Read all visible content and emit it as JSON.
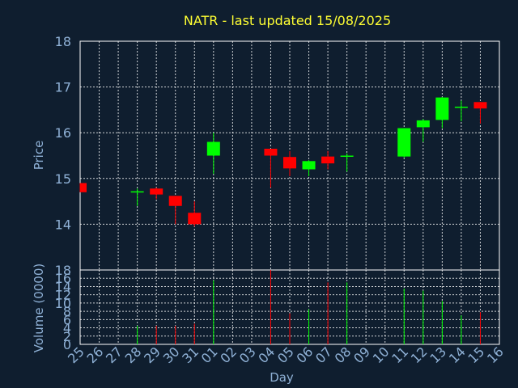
{
  "chart_data": {
    "type": "candlestick",
    "title": "NATR - last updated 15/08/2025",
    "xlabel": "Day",
    "price_axis": {
      "label": "Price",
      "ylim": [
        13.0,
        18.0
      ],
      "ticks": [
        14,
        15,
        16,
        17,
        18
      ]
    },
    "volume_axis": {
      "label": "Volume (0000)",
      "ylim": [
        0,
        18
      ],
      "ticks": [
        0,
        2,
        4,
        6,
        8,
        10,
        12,
        14,
        16,
        18
      ]
    },
    "x_tick_labels": [
      "25",
      "26",
      "27",
      "28",
      "29",
      "30",
      "31",
      "01",
      "02",
      "03",
      "04",
      "05",
      "06",
      "07",
      "08",
      "09",
      "10",
      "11",
      "12",
      "13",
      "14",
      "15",
      "16"
    ],
    "grid": true,
    "up_color": "#00ff00",
    "down_color": "#ff0000",
    "candles": [
      {
        "day": "25",
        "open": 14.9,
        "high": 14.9,
        "low": 14.7,
        "close": 14.7,
        "volume": 0
      },
      {
        "day": "28",
        "open": 14.7,
        "high": 14.78,
        "low": 14.4,
        "close": 14.72,
        "volume": 4.5
      },
      {
        "day": "29",
        "open": 14.78,
        "high": 14.8,
        "low": 14.55,
        "close": 14.65,
        "volume": 4.5
      },
      {
        "day": "30",
        "open": 14.62,
        "high": 14.62,
        "low": 14.0,
        "close": 14.4,
        "volume": 4.5
      },
      {
        "day": "31",
        "open": 14.25,
        "high": 14.5,
        "low": 13.95,
        "close": 14.0,
        "volume": 5.0
      },
      {
        "day": "01",
        "open": 15.5,
        "high": 16.0,
        "low": 15.1,
        "close": 15.8,
        "volume": 15.5
      },
      {
        "day": "04",
        "open": 15.65,
        "high": 15.65,
        "low": 14.8,
        "close": 15.5,
        "volume": 18.0
      },
      {
        "day": "05",
        "open": 15.47,
        "high": 15.6,
        "low": 15.05,
        "close": 15.22,
        "volume": 7.5
      },
      {
        "day": "06",
        "open": 15.2,
        "high": 15.4,
        "low": 15.05,
        "close": 15.38,
        "volume": 8.5
      },
      {
        "day": "07",
        "open": 15.48,
        "high": 15.6,
        "low": 15.2,
        "close": 15.33,
        "volume": 15.0
      },
      {
        "day": "08",
        "open": 15.48,
        "high": 15.55,
        "low": 15.15,
        "close": 15.5,
        "volume": 15.0
      },
      {
        "day": "11",
        "open": 15.48,
        "high": 16.1,
        "low": 15.45,
        "close": 16.1,
        "volume": 13.5
      },
      {
        "day": "12",
        "open": 16.12,
        "high": 16.3,
        "low": 15.8,
        "close": 16.27,
        "volume": 13.0
      },
      {
        "day": "13",
        "open": 16.28,
        "high": 16.78,
        "low": 16.1,
        "close": 16.77,
        "volume": 10.5
      },
      {
        "day": "14",
        "open": 16.55,
        "high": 16.7,
        "low": 16.25,
        "close": 16.57,
        "volume": 7.0
      },
      {
        "day": "15",
        "open": 16.67,
        "high": 16.67,
        "low": 16.2,
        "close": 16.53,
        "volume": 7.8
      }
    ]
  }
}
